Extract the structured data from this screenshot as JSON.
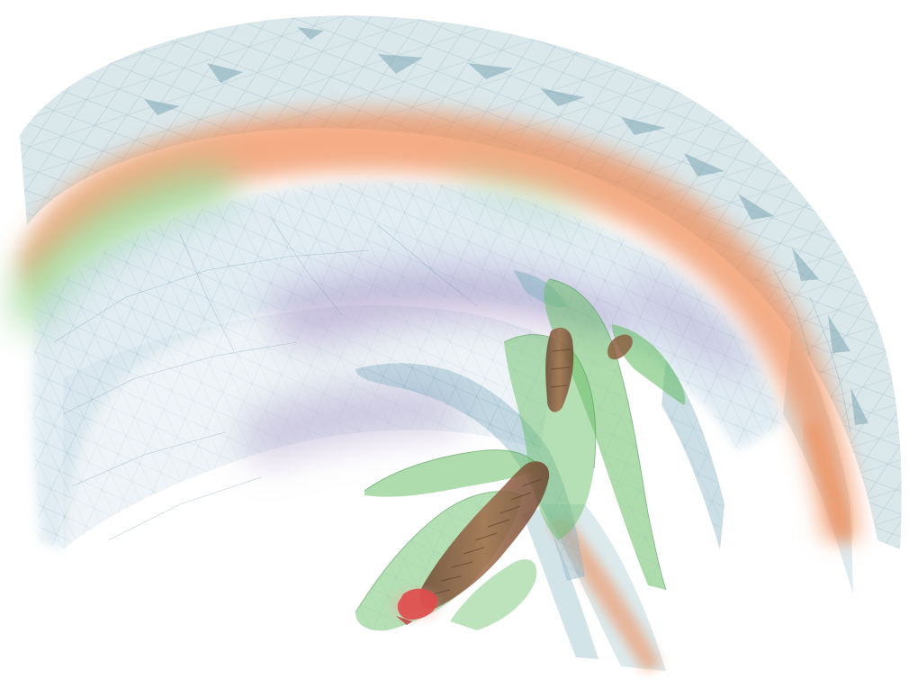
{
  "scene": {
    "background_color": "#ffffff",
    "rendering": "translucent-isosurface-mesh-volume",
    "layers": [
      {
        "name": "outer-shell",
        "color": "#d6e6ea"
      },
      {
        "name": "orange-band",
        "color": "#f08a55"
      },
      {
        "name": "green-band",
        "color": "#9fd89a"
      },
      {
        "name": "inner-haze",
        "color": "#bcd6e4"
      },
      {
        "name": "purple-haze",
        "color": "#a898c8"
      },
      {
        "name": "blue-ribbons",
        "color": "#8eb6c8"
      },
      {
        "name": "green-leaves",
        "color": "#6cc06a"
      },
      {
        "name": "brown-core",
        "color": "#8b5a3c"
      },
      {
        "name": "red-tip",
        "color": "#e04b4b"
      },
      {
        "name": "mesh-lines",
        "color": "#6f9aa8"
      }
    ]
  }
}
